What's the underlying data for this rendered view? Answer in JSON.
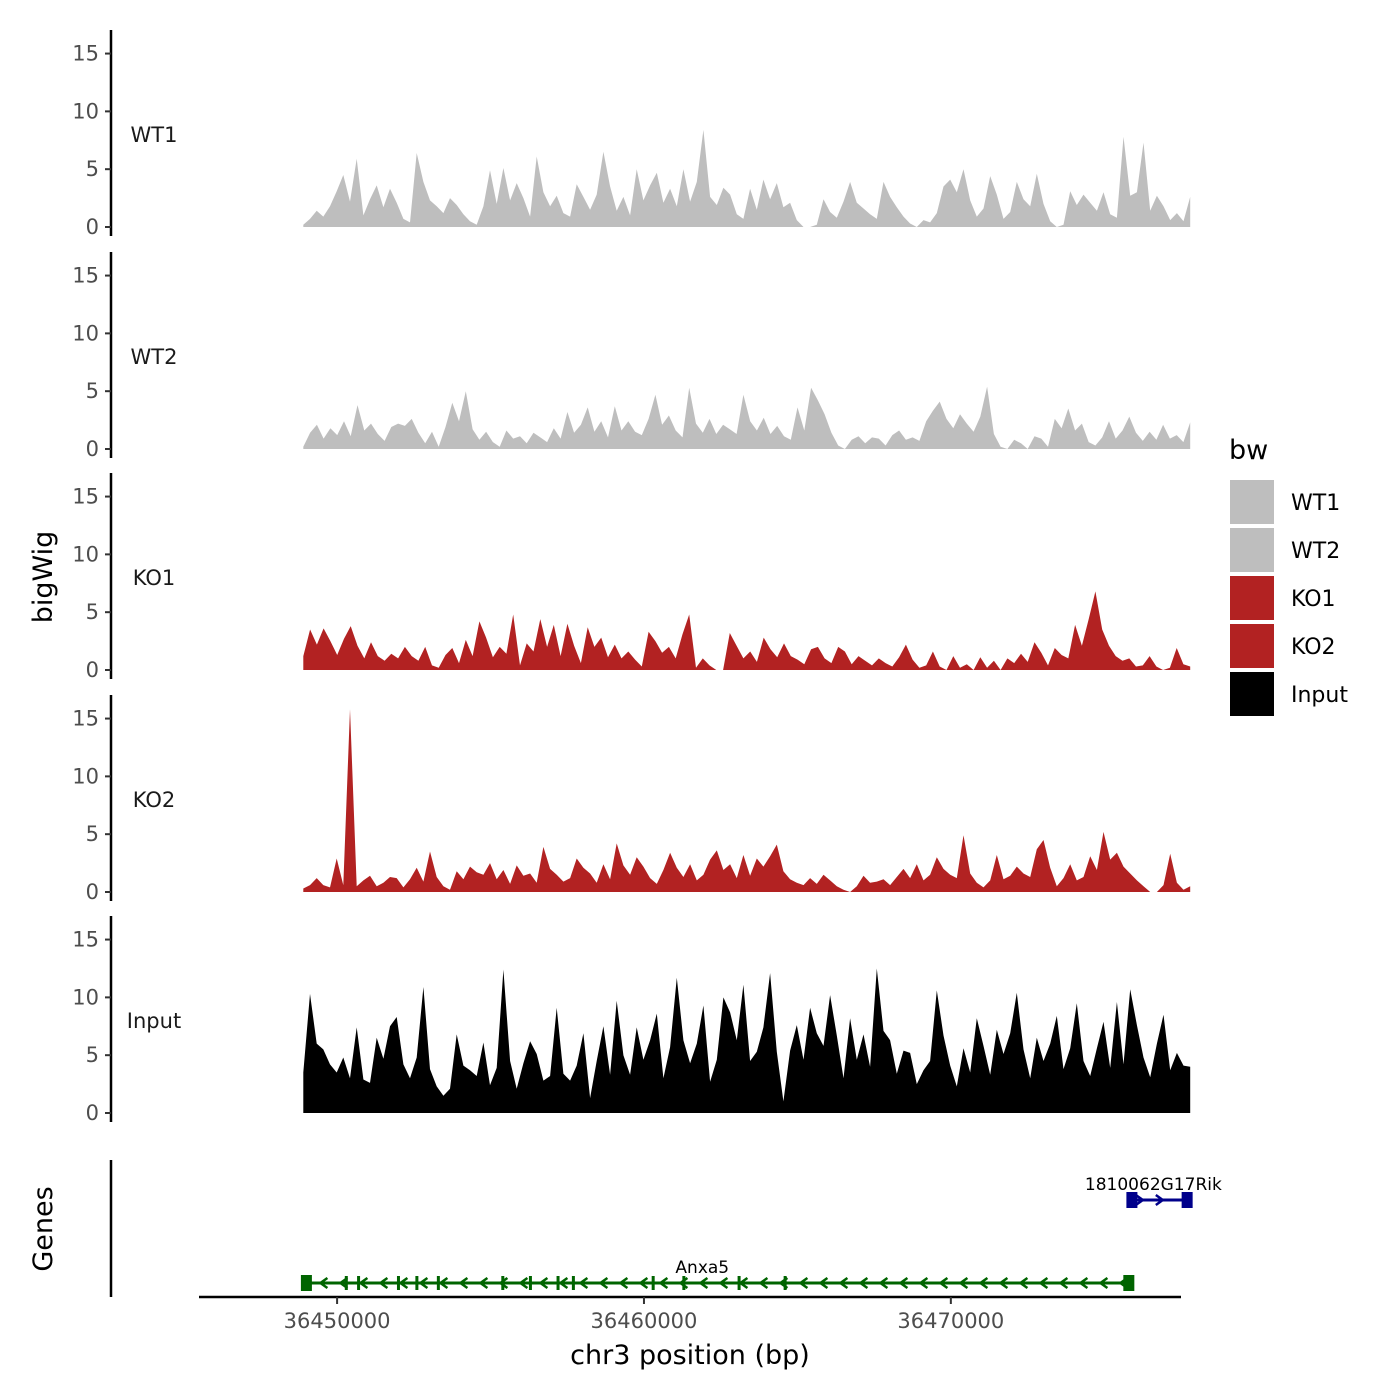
{
  "chart_data": {
    "type": "area",
    "ylabel_tracks": "bigWig",
    "ylabel_genes": "Genes",
    "xlabel": "chr3 position (bp)",
    "xlim": [
      36445500,
      36477500
    ],
    "x_ticks": [
      36450000,
      36460000,
      36470000
    ],
    "x_tick_labels": [
      "36450000",
      "36460000",
      "36470000"
    ],
    "ylim": [
      0,
      16
    ],
    "y_ticks": [
      0,
      5,
      10,
      15
    ],
    "y_tick_labels": [
      "0",
      "5",
      "10",
      "15"
    ],
    "legend": {
      "title": "bw",
      "position": "right",
      "items": [
        {
          "label": "WT1",
          "color": "#bebebe"
        },
        {
          "label": "WT2",
          "color": "#bebebe"
        },
        {
          "label": "KO1",
          "color": "#b22222"
        },
        {
          "label": "KO2",
          "color": "#b22222"
        },
        {
          "label": "Input",
          "color": "#000000"
        }
      ]
    },
    "series": [
      {
        "name": "WT1",
        "color": "#bebebe",
        "x_start": 36448900,
        "x_end": 36477800,
        "values": [
          0.2,
          0.7,
          1.4,
          0.9,
          1.8,
          3.1,
          4.5,
          2.2,
          5.9,
          1.0,
          2.4,
          3.6,
          1.7,
          3.3,
          2.1,
          0.7,
          0.4,
          6.4,
          3.9,
          2.3,
          1.8,
          1.2,
          2.5,
          1.9,
          1.1,
          0.5,
          0.2,
          1.8,
          4.9,
          2.0,
          5.1,
          2.3,
          3.8,
          2.5,
          0.9,
          6.1,
          3.0,
          1.8,
          2.7,
          1.2,
          0.9,
          3.7,
          2.6,
          1.5,
          2.8,
          6.5,
          3.5,
          1.4,
          2.6,
          1.0,
          5.0,
          2.3,
          3.6,
          4.7,
          2.1,
          3.3,
          1.8,
          5.0,
          2.2,
          3.9,
          8.4,
          2.6,
          1.9,
          3.4,
          2.8,
          1.1,
          0.7,
          3.3,
          1.5,
          4.1,
          2.4,
          3.8,
          1.7,
          2.1,
          0.6,
          0.0,
          0.0,
          0.2,
          2.4,
          1.3,
          0.8,
          2.2,
          3.9,
          2.1,
          1.6,
          1.1,
          0.7,
          3.9,
          2.6,
          1.7,
          0.9,
          0.3,
          0.0,
          0.6,
          0.4,
          1.2,
          3.5,
          4.1,
          3.0,
          5.0,
          2.3,
          0.9,
          1.6,
          4.4,
          2.8,
          0.7,
          1.3,
          3.9,
          2.4,
          1.8,
          4.6,
          2.0,
          0.5,
          0.0,
          0.2,
          3.1,
          1.9,
          2.8,
          2.1,
          1.4,
          3.0,
          1.1,
          0.8,
          7.8,
          2.7,
          3.0,
          7.3,
          1.4,
          2.7,
          1.8,
          0.6,
          1.2,
          0.5,
          2.6
        ]
      },
      {
        "name": "WT2",
        "color": "#bebebe",
        "x_start": 36448900,
        "x_end": 36477800,
        "values": [
          0.2,
          1.4,
          2.1,
          0.9,
          1.8,
          1.2,
          2.4,
          1.1,
          3.8,
          1.6,
          2.2,
          1.3,
          0.7,
          1.9,
          2.2,
          2.0,
          2.6,
          1.4,
          0.5,
          1.5,
          0.2,
          1.9,
          4.0,
          2.4,
          5.0,
          1.7,
          0.8,
          1.5,
          0.6,
          0.2,
          1.6,
          0.9,
          1.1,
          0.5,
          1.4,
          1.0,
          0.6,
          1.8,
          0.9,
          3.2,
          1.4,
          2.1,
          3.6,
          1.5,
          2.4,
          1.0,
          3.7,
          1.6,
          2.4,
          1.5,
          1.2,
          2.6,
          4.7,
          2.1,
          2.9,
          1.6,
          1.0,
          5.3,
          2.2,
          1.4,
          2.6,
          1.3,
          2.1,
          1.7,
          1.3,
          4.7,
          2.4,
          1.6,
          2.7,
          1.3,
          2.0,
          1.1,
          0.8,
          3.6,
          1.6,
          5.3,
          4.2,
          3.0,
          1.4,
          0.3,
          0.0,
          0.8,
          1.1,
          0.5,
          1.0,
          0.9,
          0.3,
          1.2,
          1.6,
          0.8,
          1.0,
          0.7,
          2.4,
          3.3,
          4.1,
          2.6,
          1.8,
          3.0,
          2.2,
          1.5,
          2.8,
          5.4,
          1.3,
          0.2,
          0.0,
          0.8,
          0.5,
          0.0,
          1.1,
          0.9,
          0.2,
          2.6,
          1.8,
          3.5,
          1.6,
          2.2,
          0.6,
          0.3,
          1.0,
          2.4,
          0.9,
          1.6,
          2.8,
          1.4,
          0.7,
          1.5,
          0.8,
          2.1,
          0.9,
          1.2,
          0.6,
          2.3
        ]
      },
      {
        "name": "KO1",
        "color": "#b22222",
        "x_start": 36448900,
        "x_end": 36477800,
        "values": [
          1.2,
          3.5,
          2.2,
          3.6,
          2.5,
          1.3,
          2.7,
          3.8,
          2.1,
          1.0,
          2.4,
          1.2,
          0.8,
          1.4,
          1.0,
          2.0,
          1.2,
          0.8,
          2.0,
          0.4,
          0.2,
          1.3,
          1.9,
          0.6,
          2.6,
          1.2,
          4.2,
          2.8,
          1.1,
          2.0,
          1.4,
          4.8,
          0.4,
          2.3,
          1.6,
          4.4,
          2.0,
          3.9,
          1.2,
          4.0,
          2.1,
          0.6,
          3.7,
          2.0,
          2.8,
          1.1,
          2.2,
          1.0,
          1.6,
          0.9,
          0.3,
          3.3,
          2.5,
          1.5,
          2.0,
          1.0,
          3.1,
          4.8,
          0.2,
          1.0,
          0.4,
          0.0,
          0.0,
          3.2,
          2.1,
          1.0,
          1.6,
          0.7,
          2.8,
          1.8,
          1.1,
          2.3,
          1.2,
          0.9,
          0.5,
          1.8,
          2.0,
          1.0,
          0.6,
          2.0,
          1.6,
          0.5,
          1.2,
          0.8,
          0.4,
          1.0,
          0.6,
          0.3,
          1.1,
          2.2,
          0.9,
          0.2,
          0.4,
          1.6,
          0.3,
          0.0,
          1.2,
          0.2,
          0.5,
          0.0,
          1.1,
          0.2,
          0.8,
          0.0,
          1.0,
          0.6,
          1.4,
          0.7,
          2.4,
          1.5,
          0.4,
          1.9,
          1.3,
          1.0,
          3.9,
          2.1,
          4.4,
          6.8,
          3.5,
          2.1,
          1.2,
          0.8,
          1.0,
          0.3,
          0.4,
          1.2,
          0.3,
          0.0,
          0.2,
          1.9,
          0.5,
          0.3
        ]
      },
      {
        "name": "KO2",
        "color": "#b22222",
        "x_start": 36448900,
        "x_end": 36477800,
        "values": [
          0.3,
          0.6,
          1.2,
          0.6,
          0.4,
          2.9,
          0.6,
          15.8,
          0.5,
          1.0,
          1.4,
          0.5,
          0.8,
          1.3,
          1.2,
          0.4,
          1.1,
          2.1,
          0.9,
          3.5,
          1.3,
          0.5,
          0.2,
          1.8,
          1.1,
          2.2,
          1.7,
          1.5,
          2.5,
          1.1,
          1.9,
          0.7,
          2.3,
          1.4,
          1.6,
          0.8,
          3.9,
          2.0,
          1.5,
          0.9,
          1.2,
          2.9,
          2.1,
          1.6,
          0.8,
          2.4,
          1.1,
          4.2,
          2.3,
          1.5,
          3.0,
          2.2,
          1.2,
          0.7,
          1.9,
          3.4,
          2.1,
          1.3,
          2.4,
          1.0,
          1.5,
          2.8,
          3.6,
          1.9,
          2.4,
          1.2,
          3.2,
          1.4,
          2.9,
          2.2,
          3.1,
          4.1,
          1.8,
          1.1,
          0.8,
          0.6,
          1.2,
          0.7,
          1.5,
          1.0,
          0.5,
          0.2,
          0.0,
          0.5,
          1.4,
          0.8,
          0.9,
          1.1,
          0.6,
          1.3,
          2.0,
          1.2,
          2.4,
          1.0,
          1.5,
          3.0,
          2.0,
          1.5,
          1.2,
          4.9,
          1.6,
          0.8,
          0.4,
          1.0,
          3.2,
          1.1,
          1.4,
          2.2,
          1.6,
          1.3,
          3.7,
          4.5,
          2.1,
          0.5,
          1.2,
          2.4,
          1.0,
          1.3,
          3.1,
          1.9,
          5.2,
          2.8,
          3.4,
          2.2,
          1.6,
          1.0,
          0.5,
          0.0,
          0.0,
          0.6,
          3.3,
          0.8,
          0.2,
          0.5
        ]
      },
      {
        "name": "Input",
        "color": "#000000",
        "x_start": 36448900,
        "x_end": 36477800,
        "values": [
          3.5,
          10.3,
          6.0,
          5.5,
          4.2,
          3.5,
          4.8,
          3.0,
          7.4,
          2.9,
          2.6,
          6.5,
          4.7,
          7.5,
          8.3,
          4.2,
          3.0,
          4.8,
          10.9,
          3.8,
          2.3,
          1.5,
          2.1,
          6.8,
          4.1,
          3.7,
          3.2,
          6.1,
          2.4,
          3.9,
          12.4,
          4.5,
          2.1,
          4.3,
          6.2,
          5.1,
          2.8,
          3.2,
          9.1,
          3.4,
          2.8,
          4.1,
          6.9,
          1.3,
          4.5,
          7.5,
          3.3,
          9.7,
          5.0,
          3.3,
          7.4,
          4.6,
          6.3,
          8.6,
          3.0,
          5.7,
          11.7,
          6.3,
          4.3,
          6.0,
          9.3,
          2.7,
          4.6,
          10.0,
          8.7,
          6.3,
          11.1,
          4.5,
          5.3,
          7.4,
          12.1,
          5.3,
          1.0,
          5.4,
          7.6,
          4.6,
          9.1,
          6.9,
          5.8,
          10.2,
          6.7,
          3.0,
          8.2,
          4.6,
          6.8,
          4.0,
          12.5,
          7.1,
          6.3,
          3.4,
          5.4,
          5.2,
          2.5,
          3.7,
          4.5,
          10.6,
          6.7,
          4.1,
          2.3,
          5.6,
          3.5,
          8.2,
          5.8,
          3.3,
          7.2,
          5.1,
          6.9,
          10.4,
          5.5,
          3.0,
          6.5,
          4.5,
          6.0,
          8.4,
          3.8,
          5.6,
          9.5,
          4.5,
          3.2,
          5.6,
          7.9,
          3.9,
          9.6,
          4.2,
          10.7,
          7.6,
          4.8,
          3.1,
          6.0,
          8.5,
          3.7,
          5.2,
          4.1,
          4.0
        ]
      }
    ],
    "genes": [
      {
        "name": "Anxa5",
        "strand": "-",
        "color": "#006400",
        "start": 36449000,
        "end": 36475800,
        "exons": [
          36449000,
          36450300,
          36450700,
          36452000,
          36452600,
          36453300,
          36455400,
          36456300,
          36457200,
          36457700,
          36460300,
          36461300,
          36463100,
          36464600,
          36475800
        ]
      },
      {
        "name": "1810062G17Rik",
        "strand": "+",
        "color": "#00008b",
        "start": 36475800,
        "end": 36477800,
        "exons": [
          36475900,
          36477700
        ]
      }
    ]
  }
}
